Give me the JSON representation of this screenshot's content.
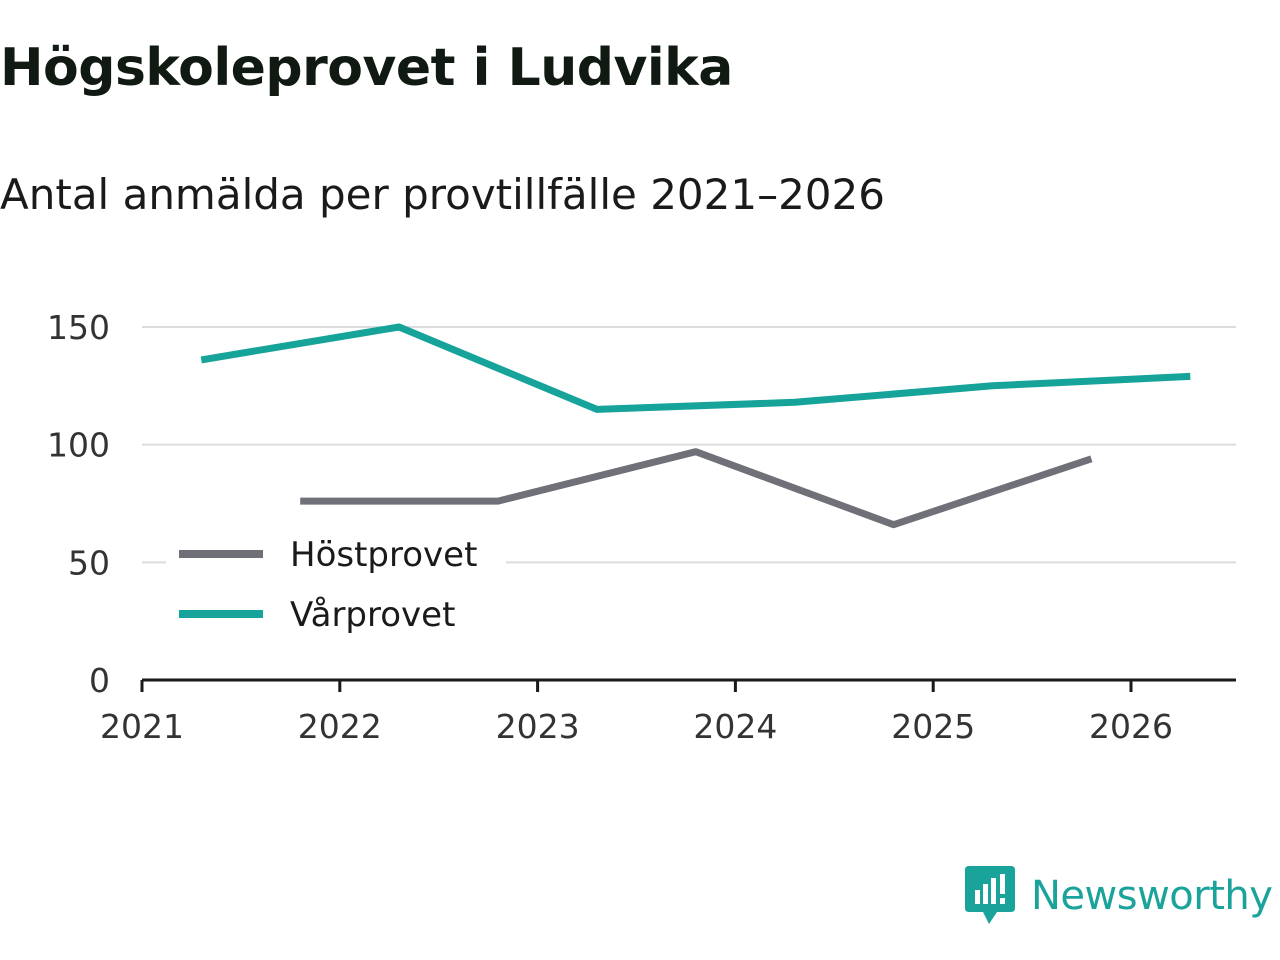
{
  "title": "Högskoleprovet i Ludvika",
  "subtitle": "Antal anmälda per provtillfälle 2021–2026",
  "brand": {
    "name": "Newsworthy",
    "color": "#1aa39a"
  },
  "chart_data": {
    "type": "line",
    "title": "Högskoleprovet i Ludvika",
    "subtitle": "Antal anmälda per provtillfälle 2021–2026",
    "xlabel": "",
    "ylabel": "",
    "xlim": [
      2021,
      2026.5
    ],
    "ylim": [
      0,
      150
    ],
    "x_ticks": [
      "2021",
      "2022",
      "2023",
      "2024",
      "2025",
      "2026"
    ],
    "y_ticks": [
      "0",
      "50",
      "100",
      "150"
    ],
    "grid": true,
    "legend_position": "bottom-left",
    "series": [
      {
        "name": "Höstprovet",
        "color": "#707078",
        "x": [
          2021.8,
          2022.8,
          2023.8,
          2024.8,
          2025.8
        ],
        "y": [
          76,
          76,
          97,
          66,
          94
        ]
      },
      {
        "name": "Vårprovet",
        "color": "#16a39a",
        "x": [
          2021.3,
          2022.3,
          2023.3,
          2024.3,
          2025.3,
          2026.3
        ],
        "y": [
          136,
          150,
          115,
          118,
          125,
          129
        ]
      }
    ]
  }
}
